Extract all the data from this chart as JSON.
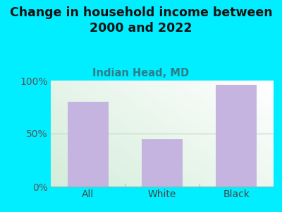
{
  "title": "Change in household income between\n2000 and 2022",
  "subtitle": "Indian Head, MD",
  "categories": [
    "All",
    "White",
    "Black"
  ],
  "values": [
    80,
    45,
    96
  ],
  "bar_color": "#c5b3e0",
  "background_outer": "#00eeff",
  "title_fontsize": 12.5,
  "subtitle_fontsize": 10.5,
  "tick_label_fontsize": 10,
  "ylim": [
    0,
    100
  ],
  "yticks": [
    0,
    50,
    100
  ],
  "ytick_labels": [
    "0%",
    "50%",
    "100%"
  ],
  "title_color": "#111111",
  "subtitle_color": "#2e7d8a",
  "tick_color": "#555555",
  "xlabel_color": "#444444",
  "gradient_colors": [
    "#d4edda",
    "#f0faf0",
    "#ffffff"
  ],
  "grid_color": "#c8d8c8",
  "spine_color": "#aaaaaa"
}
